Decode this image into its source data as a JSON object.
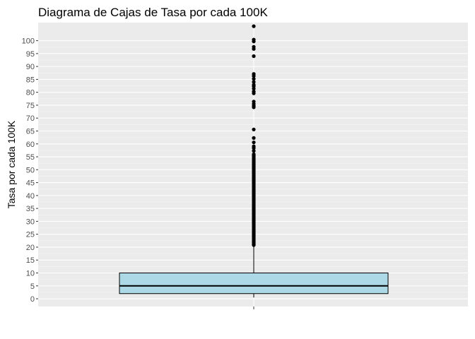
{
  "chart_data": {
    "type": "boxplot",
    "title": "Diagrama de Cajas de Tasa por cada 100K",
    "xlabel": "",
    "ylabel": "Tasa por cada 100K",
    "ylim": [
      -3,
      107
    ],
    "y_ticks": [
      0,
      5,
      10,
      15,
      20,
      25,
      30,
      35,
      40,
      45,
      50,
      55,
      60,
      65,
      70,
      75,
      80,
      85,
      90,
      95,
      100
    ],
    "y_tick_labels": [
      "0",
      "5",
      "10",
      "15",
      "20",
      "25",
      "30",
      "35",
      "40",
      "45",
      "50",
      "55",
      "60",
      "65",
      "70",
      "75",
      "80",
      "85",
      "90",
      "95",
      "100"
    ],
    "grid": true,
    "box": {
      "min": 0.5,
      "q1": 2,
      "median": 5,
      "q3": 10,
      "max": 20.5,
      "fill": "#add8e6"
    },
    "outliers": [
      20.8,
      21.0,
      21.2,
      21.5,
      21.8,
      22.0,
      22.3,
      22.6,
      23.0,
      23.4,
      23.8,
      24.2,
      24.6,
      25.0,
      25.4,
      25.8,
      26.2,
      26.6,
      27.0,
      27.4,
      27.8,
      28.2,
      28.6,
      29.0,
      29.4,
      29.8,
      30.2,
      30.6,
      31.0,
      31.4,
      31.8,
      32.2,
      32.6,
      33.0,
      33.4,
      33.8,
      34.2,
      34.6,
      35.0,
      35.4,
      35.8,
      36.2,
      36.6,
      37.0,
      37.4,
      37.8,
      38.2,
      38.6,
      39.0,
      39.4,
      39.8,
      40.2,
      40.6,
      41.0,
      41.4,
      41.8,
      42.2,
      42.6,
      43.0,
      43.4,
      43.8,
      44.2,
      44.6,
      45.0,
      45.4,
      45.8,
      46.2,
      46.6,
      47.0,
      47.4,
      47.8,
      48.2,
      48.6,
      49.0,
      49.4,
      49.8,
      50.2,
      50.6,
      51.0,
      51.4,
      51.8,
      52.2,
      52.6,
      53.0,
      53.4,
      53.8,
      54.2,
      54.6,
      55.0,
      55.5,
      56.0,
      57.3,
      58.4,
      59.1,
      60.6,
      62.3,
      65.6,
      74.2,
      74.8,
      75.5,
      76.4,
      79.6,
      80.3,
      81.4,
      82.3,
      82.9,
      84.0,
      85.2,
      86.3,
      87.1,
      94.0,
      96.8,
      97.6,
      99.7,
      100.4,
      105.6
    ]
  }
}
